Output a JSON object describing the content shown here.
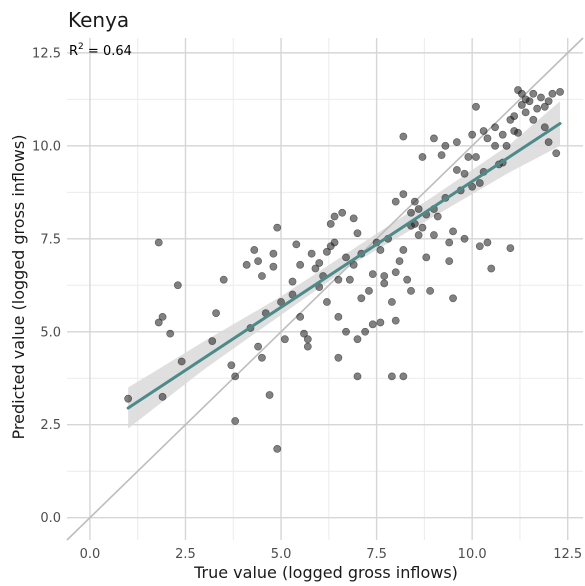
{
  "chart_data": {
    "type": "scatter",
    "title": "Kenya",
    "xlabel": "True value (logged gross inflows)",
    "ylabel": "Predicted value (logged gross inflows)",
    "annotation": {
      "prefix": "R",
      "sup": "2",
      "suffix": " = 0.64"
    },
    "xlim": [
      -0.6,
      12.9
    ],
    "ylim": [
      -0.6,
      12.9
    ],
    "xticks": [
      0.0,
      2.5,
      5.0,
      7.5,
      10.0,
      12.5
    ],
    "yticks": [
      0.0,
      2.5,
      5.0,
      7.5,
      10.0,
      12.5
    ],
    "xtick_labels": [
      "0.0",
      "2.5",
      "5.0",
      "7.5",
      "10.0",
      "12.5"
    ],
    "ytick_labels": [
      "0.0",
      "2.5",
      "5.0",
      "7.5",
      "10.0",
      "12.5"
    ],
    "grid": true,
    "identity_line": {
      "from": [
        -0.6,
        -0.6
      ],
      "to": [
        12.9,
        12.9
      ],
      "color": "#bdbdbd"
    },
    "fit_line": {
      "x": [
        1.0,
        12.3
      ],
      "y": [
        2.95,
        10.6
      ],
      "color": "#4e8a8a"
    },
    "confidence_band": {
      "x": [
        1.0,
        3.0,
        5.0,
        7.0,
        9.0,
        11.0,
        12.3
      ],
      "lower": [
        2.4,
        4.0,
        5.45,
        6.9,
        8.1,
        9.3,
        10.0
      ],
      "upper": [
        3.5,
        4.75,
        5.95,
        7.3,
        8.65,
        10.05,
        11.2
      ],
      "color": "#d9d9d9"
    },
    "point_color": "#1a1a1a",
    "points": [
      [
        1.0,
        3.2
      ],
      [
        1.8,
        7.4
      ],
      [
        1.8,
        5.25
      ],
      [
        1.9,
        5.4
      ],
      [
        1.9,
        3.25
      ],
      [
        2.1,
        4.95
      ],
      [
        2.3,
        6.25
      ],
      [
        2.4,
        4.2
      ],
      [
        3.2,
        4.75
      ],
      [
        3.5,
        6.4
      ],
      [
        3.7,
        4.1
      ],
      [
        3.8,
        3.8
      ],
      [
        3.8,
        2.6
      ],
      [
        4.1,
        6.8
      ],
      [
        4.3,
        7.2
      ],
      [
        4.4,
        6.9
      ],
      [
        4.4,
        4.6
      ],
      [
        4.5,
        6.5
      ],
      [
        4.5,
        4.3
      ],
      [
        4.6,
        5.5
      ],
      [
        4.7,
        3.3
      ],
      [
        4.8,
        7.1
      ],
      [
        4.8,
        6.75
      ],
      [
        4.9,
        7.8
      ],
      [
        4.9,
        1.85
      ],
      [
        5.0,
        5.8
      ],
      [
        5.1,
        4.8
      ],
      [
        5.3,
        6.0
      ],
      [
        5.4,
        7.35
      ],
      [
        5.5,
        6.8
      ],
      [
        5.5,
        5.4
      ],
      [
        5.6,
        4.95
      ],
      [
        5.7,
        4.8
      ],
      [
        5.7,
        4.6
      ],
      [
        5.8,
        7.1
      ],
      [
        5.9,
        6.7
      ],
      [
        6.0,
        6.2
      ],
      [
        6.1,
        6.5
      ],
      [
        6.2,
        5.8
      ],
      [
        6.3,
        7.9
      ],
      [
        6.3,
        7.3
      ],
      [
        6.4,
        7.4
      ],
      [
        6.4,
        8.1
      ],
      [
        6.5,
        6.4
      ],
      [
        6.5,
        5.4
      ],
      [
        6.5,
        4.3
      ],
      [
        6.6,
        8.2
      ],
      [
        6.7,
        7.0
      ],
      [
        6.7,
        5.0
      ],
      [
        6.8,
        6.4
      ],
      [
        6.9,
        8.05
      ],
      [
        6.9,
        6.8
      ],
      [
        7.0,
        4.8
      ],
      [
        7.0,
        3.8
      ],
      [
        7.1,
        7.1
      ],
      [
        7.1,
        5.9
      ],
      [
        7.2,
        5.0
      ],
      [
        7.3,
        6.1
      ],
      [
        7.4,
        5.2
      ],
      [
        7.5,
        7.4
      ],
      [
        7.6,
        7.2
      ],
      [
        7.6,
        5.25
      ],
      [
        7.7,
        6.5
      ],
      [
        7.7,
        6.3
      ],
      [
        7.8,
        7.5
      ],
      [
        7.9,
        5.8
      ],
      [
        7.9,
        3.8
      ],
      [
        8.0,
        8.5
      ],
      [
        8.0,
        6.6
      ],
      [
        8.0,
        5.3
      ],
      [
        8.1,
        6.9
      ],
      [
        8.2,
        10.25
      ],
      [
        8.2,
        8.7
      ],
      [
        8.2,
        7.2
      ],
      [
        8.2,
        3.8
      ],
      [
        8.3,
        6.4
      ],
      [
        8.4,
        8.2
      ],
      [
        8.4,
        6.1
      ],
      [
        8.5,
        8.5
      ],
      [
        8.5,
        7.9
      ],
      [
        8.6,
        8.3
      ],
      [
        8.6,
        7.6
      ],
      [
        8.7,
        9.7
      ],
      [
        8.7,
        7.8
      ],
      [
        8.8,
        7.0
      ],
      [
        8.9,
        6.1
      ],
      [
        9.0,
        10.2
      ],
      [
        9.0,
        8.3
      ],
      [
        9.0,
        7.6
      ],
      [
        9.1,
        8.1
      ],
      [
        9.2,
        9.75
      ],
      [
        9.3,
        10.0
      ],
      [
        9.3,
        8.6
      ],
      [
        9.4,
        7.4
      ],
      [
        9.4,
        6.9
      ],
      [
        9.5,
        5.9
      ],
      [
        9.5,
        7.7
      ],
      [
        9.6,
        10.1
      ],
      [
        9.7,
        8.8
      ],
      [
        9.8,
        7.5
      ],
      [
        9.9,
        9.7
      ],
      [
        10.0,
        10.3
      ],
      [
        10.0,
        8.9
      ],
      [
        10.1,
        11.05
      ],
      [
        10.1,
        9.7
      ],
      [
        10.2,
        7.3
      ],
      [
        10.3,
        10.4
      ],
      [
        10.3,
        9.3
      ],
      [
        10.4,
        10.2
      ],
      [
        10.4,
        7.4
      ],
      [
        10.5,
        6.7
      ],
      [
        10.6,
        10.5
      ],
      [
        10.6,
        10.0
      ],
      [
        10.7,
        9.5
      ],
      [
        10.8,
        10.3
      ],
      [
        10.9,
        10.0
      ],
      [
        11.0,
        10.7
      ],
      [
        11.0,
        7.25
      ],
      [
        11.1,
        10.8
      ],
      [
        11.1,
        10.4
      ],
      [
        11.2,
        11.5
      ],
      [
        11.3,
        11.4
      ],
      [
        11.3,
        11.1
      ],
      [
        11.4,
        10.9
      ],
      [
        11.5,
        11.2
      ],
      [
        11.6,
        10.7
      ],
      [
        11.7,
        11.0
      ],
      [
        11.8,
        11.3
      ],
      [
        11.9,
        10.5
      ],
      [
        12.0,
        11.2
      ],
      [
        12.1,
        11.4
      ],
      [
        12.2,
        9.8
      ],
      [
        12.3,
        11.45
      ],
      [
        11.2,
        10.35
      ],
      [
        11.6,
        11.4
      ],
      [
        10.8,
        9.55
      ],
      [
        9.8,
        9.25
      ],
      [
        8.4,
        7.85
      ],
      [
        6.2,
        7.15
      ],
      [
        5.3,
        6.35
      ],
      [
        7.4,
        6.55
      ],
      [
        10.2,
        9.0
      ],
      [
        11.9,
        11.05
      ],
      [
        8.8,
        8.15
      ],
      [
        9.6,
        9.35
      ],
      [
        11.4,
        11.25
      ],
      [
        7.0,
        7.65
      ],
      [
        12.0,
        10.1
      ],
      [
        6.0,
        6.85
      ],
      [
        4.2,
        5.1
      ],
      [
        3.3,
        5.5
      ]
    ]
  }
}
